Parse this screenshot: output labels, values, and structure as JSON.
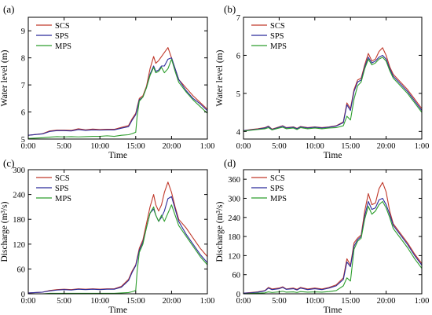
{
  "legend_order": [
    "SCS",
    "SPS",
    "MPS"
  ],
  "series_colors": {
    "SCS": "#c0392b",
    "SPS": "#2b2b9b",
    "MPS": "#2e9e2e"
  },
  "chart_data": [
    {
      "panel": "(a)",
      "type": "line",
      "xlabel": "Time",
      "ylabel": "Water level (m)",
      "x_ticks": [
        "0:00",
        "5:00",
        "10:00",
        "15:00",
        "20:00",
        "1:00"
      ],
      "xlim": [
        0,
        25
      ],
      "ylim": [
        5,
        9.5
      ],
      "y_ticks": [
        5,
        6,
        7,
        8,
        9
      ],
      "legend_position": "top-left",
      "series": [
        {
          "name": "SCS",
          "x": [
            0,
            2,
            3,
            4,
            5,
            6,
            7,
            8,
            9,
            10,
            11,
            12,
            13,
            14,
            14.5,
            15,
            15.5,
            16,
            16.5,
            17,
            17.5,
            17.8,
            18.2,
            18.6,
            19,
            19.5,
            20,
            20.5,
            21,
            22,
            23,
            24,
            25
          ],
          "values": [
            5.14,
            5.2,
            5.3,
            5.33,
            5.33,
            5.32,
            5.38,
            5.34,
            5.37,
            5.35,
            5.36,
            5.36,
            5.43,
            5.5,
            5.75,
            5.95,
            6.5,
            6.6,
            6.95,
            7.6,
            8.05,
            7.8,
            7.9,
            8.05,
            8.2,
            8.38,
            8.0,
            7.6,
            7.2,
            6.9,
            6.6,
            6.35,
            6.1
          ]
        },
        {
          "name": "SPS",
          "x": [
            0,
            2,
            3,
            4,
            5,
            6,
            7,
            8,
            9,
            10,
            11,
            12,
            13,
            14,
            14.5,
            15,
            15.5,
            16,
            16.5,
            17,
            17.5,
            17.8,
            18.2,
            18.6,
            19,
            19.5,
            20,
            20.5,
            21,
            22,
            23,
            24,
            25
          ],
          "values": [
            5.14,
            5.19,
            5.28,
            5.31,
            5.31,
            5.3,
            5.35,
            5.32,
            5.34,
            5.33,
            5.34,
            5.34,
            5.4,
            5.46,
            5.7,
            5.9,
            6.45,
            6.55,
            6.9,
            7.4,
            7.7,
            7.5,
            7.55,
            7.7,
            7.7,
            7.95,
            8.0,
            7.6,
            7.2,
            6.8,
            6.5,
            6.3,
            6.05
          ]
        },
        {
          "name": "MPS",
          "x": [
            0,
            2,
            3,
            4,
            5,
            6,
            7,
            8,
            9,
            10,
            11,
            12,
            13,
            14,
            14.5,
            15,
            15.2,
            15.5,
            16,
            16.5,
            17,
            17.5,
            17.8,
            18.2,
            18.6,
            19,
            19.5,
            20,
            20.5,
            21,
            22,
            23,
            24,
            25
          ],
          "values": [
            5.02,
            5.05,
            5.07,
            5.09,
            5.08,
            5.09,
            5.08,
            5.09,
            5.1,
            5.1,
            5.12,
            5.1,
            5.14,
            5.16,
            5.2,
            5.25,
            5.85,
            6.4,
            6.55,
            6.9,
            7.35,
            7.65,
            7.45,
            7.5,
            7.65,
            7.45,
            7.6,
            7.95,
            7.5,
            7.1,
            6.75,
            6.45,
            6.2,
            5.95
          ]
        }
      ]
    },
    {
      "panel": "(b)",
      "type": "line",
      "xlabel": "Time",
      "ylabel": "Water level (m)",
      "x_ticks": [
        "0:00",
        "5:00",
        "10:00",
        "15:00",
        "20:00",
        "1:00"
      ],
      "xlim": [
        0,
        25
      ],
      "ylim": [
        3.8,
        7
      ],
      "y_ticks": [
        4,
        5,
        6,
        7
      ],
      "legend_position": "top-left",
      "series": [
        {
          "name": "SCS",
          "x": [
            0,
            1,
            2,
            3,
            3.5,
            4,
            5,
            5.5,
            6,
            7,
            7.5,
            8,
            9,
            10,
            11,
            12,
            13,
            14,
            14.5,
            15,
            15.5,
            16,
            16.5,
            17,
            17.5,
            18,
            18.5,
            19,
            19.5,
            20,
            20.5,
            21,
            22,
            23,
            24,
            25
          ],
          "values": [
            4.02,
            4.05,
            4.07,
            4.1,
            4.14,
            4.06,
            4.12,
            4.15,
            4.1,
            4.12,
            4.08,
            4.13,
            4.1,
            4.12,
            4.1,
            4.12,
            4.15,
            4.25,
            4.75,
            4.6,
            5.1,
            5.35,
            5.4,
            5.75,
            6.05,
            5.85,
            5.9,
            6.1,
            6.2,
            6.0,
            5.7,
            5.5,
            5.3,
            5.1,
            4.85,
            4.6
          ]
        },
        {
          "name": "SPS",
          "x": [
            0,
            1,
            2,
            3,
            3.5,
            4,
            5,
            5.5,
            6,
            7,
            7.5,
            8,
            9,
            10,
            11,
            12,
            13,
            14,
            14.5,
            15,
            15.5,
            16,
            16.5,
            17,
            17.5,
            18,
            18.5,
            19,
            19.5,
            20,
            20.5,
            21,
            22,
            23,
            24,
            25
          ],
          "values": [
            4.02,
            4.04,
            4.06,
            4.09,
            4.13,
            4.05,
            4.11,
            4.14,
            4.09,
            4.11,
            4.07,
            4.12,
            4.09,
            4.11,
            4.09,
            4.11,
            4.14,
            4.23,
            4.7,
            4.55,
            5.05,
            5.3,
            5.35,
            5.7,
            5.95,
            5.8,
            5.85,
            5.95,
            6.0,
            5.9,
            5.65,
            5.45,
            5.25,
            5.05,
            4.8,
            4.55
          ]
        },
        {
          "name": "MPS",
          "x": [
            0,
            1,
            2,
            3,
            3.5,
            4,
            5,
            5.5,
            6,
            7,
            7.5,
            8,
            9,
            10,
            11,
            12,
            13,
            14,
            14.5,
            15,
            15.5,
            16,
            16.5,
            17,
            17.5,
            18,
            18.5,
            19,
            19.5,
            20,
            20.5,
            21,
            22,
            23,
            24,
            25
          ],
          "values": [
            4.01,
            4.03,
            4.05,
            4.07,
            4.1,
            4.04,
            4.09,
            4.11,
            4.07,
            4.09,
            4.05,
            4.1,
            4.07,
            4.09,
            4.07,
            4.09,
            4.1,
            4.15,
            4.4,
            4.3,
            4.85,
            5.2,
            5.3,
            5.65,
            5.9,
            5.75,
            5.8,
            5.9,
            5.95,
            5.85,
            5.6,
            5.4,
            5.2,
            5.0,
            4.75,
            4.5
          ]
        }
      ]
    },
    {
      "panel": "(c)",
      "type": "line",
      "xlabel": "Time",
      "ylabel": "Discharge (m³/s)",
      "x_ticks": [
        "0:00",
        "5:00",
        "10:00",
        "15:00",
        "20:00",
        "1:00"
      ],
      "xlim": [
        0,
        25
      ],
      "ylim": [
        0,
        300
      ],
      "y_ticks": [
        0,
        60,
        120,
        180,
        240,
        300
      ],
      "legend_position": "top-left",
      "series": [
        {
          "name": "SCS",
          "x": [
            0,
            2,
            3,
            4,
            5,
            6,
            7,
            8,
            9,
            10,
            11,
            12,
            13,
            14,
            14.5,
            15,
            15.5,
            16,
            16.5,
            17,
            17.5,
            17.8,
            18.2,
            18.6,
            19,
            19.5,
            20,
            20.5,
            21,
            22,
            23,
            24,
            25
          ],
          "values": [
            2,
            4,
            8,
            10,
            11,
            10,
            12,
            11,
            12,
            11,
            12,
            12,
            18,
            35,
            55,
            70,
            110,
            130,
            170,
            210,
            240,
            215,
            200,
            215,
            245,
            270,
            245,
            210,
            180,
            160,
            135,
            110,
            90
          ]
        },
        {
          "name": "SPS",
          "x": [
            0,
            2,
            3,
            4,
            5,
            6,
            7,
            8,
            9,
            10,
            11,
            12,
            13,
            14,
            14.5,
            15,
            15.5,
            16,
            16.5,
            17,
            17.5,
            17.8,
            18.2,
            18.6,
            19,
            19.5,
            20,
            20.5,
            21,
            22,
            23,
            24,
            25
          ],
          "values": [
            2,
            4,
            7,
            9,
            10,
            9,
            11,
            10,
            11,
            10,
            11,
            11,
            16,
            32,
            52,
            68,
            105,
            125,
            160,
            195,
            205,
            190,
            175,
            185,
            200,
            230,
            235,
            205,
            175,
            145,
            120,
            95,
            75
          ]
        },
        {
          "name": "MPS",
          "x": [
            0,
            2,
            3,
            4,
            5,
            6,
            7,
            8,
            9,
            10,
            11,
            12,
            13,
            14,
            14.5,
            15,
            15.2,
            15.5,
            16,
            16.5,
            17,
            17.5,
            17.8,
            18.2,
            18.6,
            19,
            19.5,
            20,
            20.5,
            21,
            22,
            23,
            24,
            25
          ],
          "values": [
            0,
            0,
            1,
            1,
            1,
            1,
            1,
            1,
            1,
            1,
            1,
            1,
            2,
            3,
            5,
            8,
            55,
            100,
            120,
            160,
            195,
            210,
            190,
            175,
            190,
            175,
            195,
            215,
            190,
            165,
            140,
            115,
            90,
            70
          ]
        }
      ]
    },
    {
      "panel": "(d)",
      "type": "line",
      "xlabel": "Time",
      "ylabel": "Discharge (m³/s)",
      "x_ticks": [
        "0:00",
        "5:00",
        "10:00",
        "15:00",
        "20:00",
        "1:00"
      ],
      "xlim": [
        0,
        25
      ],
      "ylim": [
        0,
        390
      ],
      "y_ticks": [
        0,
        60,
        120,
        180,
        240,
        300,
        360
      ],
      "legend_position": "top-left",
      "series": [
        {
          "name": "SCS",
          "x": [
            0,
            1,
            2,
            3,
            3.5,
            4,
            5,
            5.5,
            6,
            7,
            7.5,
            8,
            9,
            10,
            11,
            12,
            13,
            14,
            14.5,
            15,
            15.5,
            16,
            16.5,
            17,
            17.5,
            18,
            18.5,
            19,
            19.5,
            20,
            20.5,
            21,
            22,
            23,
            24,
            25
          ],
          "values": [
            2,
            4,
            6,
            10,
            20,
            15,
            18,
            22,
            15,
            18,
            14,
            20,
            15,
            18,
            15,
            20,
            28,
            50,
            110,
            90,
            160,
            175,
            185,
            260,
            315,
            280,
            285,
            330,
            350,
            320,
            260,
            220,
            190,
            160,
            125,
            95
          ]
        },
        {
          "name": "SPS",
          "x": [
            0,
            1,
            2,
            3,
            3.5,
            4,
            5,
            5.5,
            6,
            7,
            7.5,
            8,
            9,
            10,
            11,
            12,
            13,
            14,
            14.5,
            15,
            15.5,
            16,
            16.5,
            17,
            17.5,
            18,
            18.5,
            19,
            19.5,
            20,
            20.5,
            21,
            22,
            23,
            24,
            25
          ],
          "values": [
            2,
            3,
            5,
            9,
            18,
            13,
            16,
            20,
            14,
            16,
            12,
            18,
            13,
            16,
            13,
            18,
            25,
            45,
            100,
            85,
            150,
            170,
            180,
            245,
            290,
            265,
            270,
            295,
            300,
            280,
            250,
            215,
            185,
            155,
            120,
            90
          ]
        },
        {
          "name": "MPS",
          "x": [
            0,
            1,
            2,
            3,
            3.5,
            4,
            5,
            5.5,
            6,
            7,
            7.5,
            8,
            9,
            10,
            11,
            12,
            13,
            14,
            14.5,
            15,
            15.5,
            16,
            16.5,
            17,
            17.5,
            18,
            18.5,
            19,
            19.5,
            20,
            20.5,
            21,
            22,
            23,
            24,
            25
          ],
          "values": [
            0,
            1,
            2,
            3,
            6,
            4,
            6,
            8,
            5,
            6,
            4,
            7,
            5,
            6,
            5,
            7,
            10,
            25,
            50,
            40,
            140,
            165,
            175,
            235,
            275,
            250,
            260,
            280,
            290,
            270,
            240,
            205,
            175,
            145,
            110,
            80
          ]
        }
      ]
    }
  ]
}
